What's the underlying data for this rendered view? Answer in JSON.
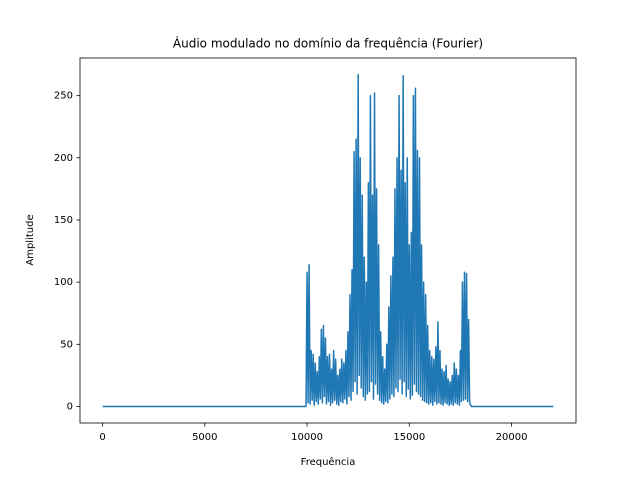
{
  "chart_data": {
    "type": "line",
    "title": "Áudio modulado no domínio da frequência (Fourier)",
    "xlabel": "Frequência",
    "ylabel": "Amplitude",
    "color": "#1f77b4",
    "xlim": [
      -1102.5,
      23152.5
    ],
    "xticks": [
      0,
      5000,
      10000,
      15000,
      20000
    ],
    "ylim": [
      -13.3,
      280.3
    ],
    "yticks": [
      0,
      50,
      100,
      150,
      200,
      250
    ],
    "grid": false,
    "x": [
      0,
      9950,
      10000,
      10050,
      10100,
      10150,
      10200,
      10250,
      10300,
      10350,
      10400,
      10450,
      10500,
      10550,
      10600,
      10650,
      10700,
      10750,
      10800,
      10850,
      10900,
      10950,
      11000,
      11050,
      11100,
      11150,
      11200,
      11250,
      11300,
      11350,
      11400,
      11450,
      11500,
      11550,
      11600,
      11650,
      11700,
      11750,
      11800,
      11850,
      11900,
      11950,
      12000,
      12050,
      12100,
      12150,
      12200,
      12250,
      12300,
      12350,
      12400,
      12450,
      12500,
      12550,
      12600,
      12650,
      12700,
      12750,
      12800,
      12850,
      12900,
      12950,
      13000,
      13050,
      13100,
      13150,
      13200,
      13250,
      13300,
      13350,
      13400,
      13450,
      13500,
      13550,
      13600,
      13650,
      13700,
      13750,
      13800,
      13850,
      13900,
      13950,
      14000,
      14050,
      14100,
      14150,
      14200,
      14250,
      14300,
      14350,
      14400,
      14450,
      14500,
      14550,
      14600,
      14650,
      14700,
      14750,
      14800,
      14850,
      14900,
      14950,
      15000,
      15050,
      15100,
      15150,
      15200,
      15250,
      15300,
      15350,
      15400,
      15450,
      15500,
      15550,
      15600,
      15650,
      15700,
      15750,
      15800,
      15850,
      15900,
      15950,
      16000,
      16050,
      16100,
      16150,
      16200,
      16250,
      16300,
      16350,
      16400,
      16450,
      16500,
      16550,
      16600,
      16650,
      16700,
      16750,
      16800,
      16850,
      16900,
      16950,
      17000,
      17050,
      17100,
      17150,
      17200,
      17250,
      17300,
      17350,
      17400,
      17450,
      17500,
      17550,
      17600,
      17650,
      17700,
      17750,
      17800,
      17850,
      17900,
      17950,
      18000,
      18050,
      22050
    ],
    "values": [
      0,
      0,
      108,
      3,
      114,
      2,
      45,
      5,
      42,
      1,
      35,
      4,
      28,
      2,
      40,
      6,
      62,
      3,
      65,
      8,
      55,
      2,
      40,
      4,
      42,
      1,
      30,
      3,
      45,
      5,
      38,
      2,
      25,
      1,
      30,
      4,
      38,
      3,
      35,
      6,
      45,
      2,
      60,
      8,
      90,
      5,
      110,
      12,
      205,
      20,
      215,
      10,
      267,
      25,
      200,
      15,
      170,
      8,
      120,
      5,
      100,
      10,
      180,
      12,
      250,
      20,
      170,
      6,
      252,
      18,
      175,
      10,
      130,
      5,
      60,
      3,
      40,
      2,
      30,
      4,
      50,
      3,
      80,
      6,
      105,
      10,
      120,
      8,
      175,
      15,
      200,
      12,
      250,
      22,
      190,
      10,
      266,
      20,
      180,
      8,
      200,
      14,
      130,
      6,
      140,
      9,
      250,
      18,
      256,
      12,
      206,
      10,
      200,
      8,
      130,
      5,
      100,
      4,
      90,
      3,
      65,
      2,
      45,
      3,
      40,
      1,
      38,
      4,
      48,
      2,
      68,
      3,
      45,
      2,
      30,
      1,
      28,
      3,
      33,
      2,
      22,
      1,
      20,
      2,
      25,
      1,
      35,
      3,
      30,
      2,
      25,
      1,
      45,
      4,
      100,
      5,
      108,
      6,
      107,
      4,
      70,
      3,
      1,
      0,
      0
    ]
  }
}
